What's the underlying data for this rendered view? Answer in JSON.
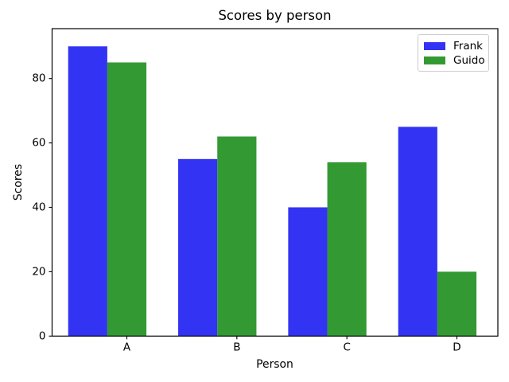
{
  "chart_data": {
    "type": "bar",
    "title": "Scores by person",
    "xlabel": "Person",
    "ylabel": "Scores",
    "categories": [
      "A",
      "B",
      "C",
      "D"
    ],
    "series": [
      {
        "name": "Frank",
        "color": "#3333f3",
        "values": [
          90,
          55,
          40,
          65
        ]
      },
      {
        "name": "Guido",
        "color": "#339933",
        "values": [
          85,
          62,
          54,
          20
        ]
      }
    ],
    "yticks": [
      0,
      20,
      40,
      60,
      80
    ],
    "ylim": [
      0,
      95.5
    ],
    "grid": false,
    "legend_position": "upper right",
    "axis_color": "#000000",
    "legend_border_color": "#cccccc",
    "background_color": "#ffffff"
  }
}
